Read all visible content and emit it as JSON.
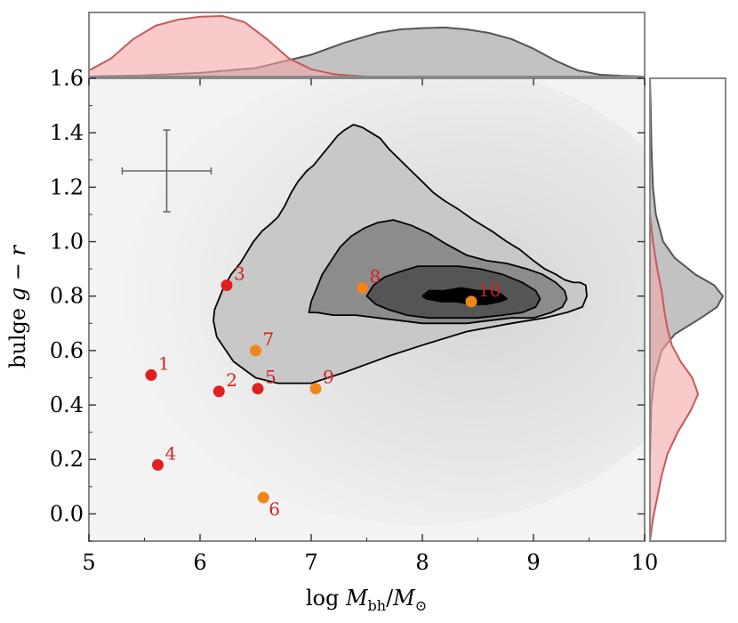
{
  "chart_data": {
    "type": "scatter",
    "xlabel": "log M_bh/M_sun",
    "xlabel_parts": {
      "prefix": "log ",
      "m1": "M",
      "sub1": "bh",
      "slash": "/",
      "m2": "M",
      "sub2": "⊙"
    },
    "ylabel": "bulge g − r",
    "ylabel_parts": {
      "prefix": "bulge ",
      "g": "g",
      "minus": " − ",
      "r": "r"
    },
    "xlim": [
      5,
      10
    ],
    "ylim": [
      -0.1,
      1.6
    ],
    "xticks": [
      5,
      6,
      7,
      8,
      9,
      10
    ],
    "xtick_labels": [
      "5",
      "6",
      "7",
      "8",
      "9",
      "10"
    ],
    "yticks": [
      0.0,
      0.2,
      0.4,
      0.6,
      0.8,
      1.0,
      1.2,
      1.4,
      1.6
    ],
    "ytick_labels": [
      "0.0",
      "0.2",
      "0.4",
      "0.6",
      "0.8",
      "1.0",
      "1.2",
      "1.4",
      "1.6"
    ],
    "error_bar": {
      "x": 5.7,
      "y": 1.26,
      "xerr": 0.4,
      "yerr": 0.15
    },
    "colors": {
      "red": "#e02020",
      "orange": "#f0861a",
      "label": "#d42020",
      "kde_red": "#f4a6a6",
      "kde_red_edge": "#c65a5a",
      "kde_gray": "#9a9a9a",
      "kde_gray_edge": "#555555",
      "contour_light": "#c8c8c8",
      "contour_mid": "#8c8c8c",
      "contour_dark": "#555555",
      "contour_core": "#000000"
    },
    "points": [
      {
        "label": "1",
        "x": 5.56,
        "y": 0.51,
        "group": "red"
      },
      {
        "label": "2",
        "x": 6.17,
        "y": 0.45,
        "group": "red"
      },
      {
        "label": "3",
        "x": 6.24,
        "y": 0.84,
        "group": "red"
      },
      {
        "label": "4",
        "x": 5.62,
        "y": 0.18,
        "group": "red"
      },
      {
        "label": "5",
        "x": 6.52,
        "y": 0.46,
        "group": "red"
      },
      {
        "label": "6",
        "x": 6.57,
        "y": 0.06,
        "group": "orange"
      },
      {
        "label": "7",
        "x": 6.5,
        "y": 0.6,
        "group": "orange"
      },
      {
        "label": "8",
        "x": 7.46,
        "y": 0.83,
        "group": "orange"
      },
      {
        "label": "9",
        "x": 7.04,
        "y": 0.46,
        "group": "orange"
      },
      {
        "label": "10",
        "x": 8.44,
        "y": 0.78,
        "group": "orange"
      }
    ],
    "contours": [
      {
        "level": "outer",
        "fill": "contour_light",
        "x": [
          6.12,
          6.13,
          6.2,
          6.28,
          6.36,
          6.42,
          6.48,
          6.56,
          6.62,
          6.7,
          6.76,
          6.82,
          6.88,
          6.96,
          7.02,
          7.1,
          7.18,
          7.24,
          7.3,
          7.38,
          7.46,
          7.54,
          7.62,
          7.7,
          7.8,
          7.9,
          8.0,
          8.1,
          8.2,
          8.32,
          8.46,
          8.62,
          8.76,
          8.88,
          9.0,
          9.1,
          9.2,
          9.28,
          9.36,
          9.42,
          9.47,
          9.48,
          9.44,
          9.3,
          9.1,
          8.8,
          8.4,
          8.0,
          7.7,
          7.5,
          7.3,
          7.15,
          7.0,
          6.85,
          6.7,
          6.5,
          6.3,
          6.15
        ],
        "y": [
          0.71,
          0.75,
          0.82,
          0.88,
          0.92,
          0.96,
          1.0,
          1.04,
          1.06,
          1.09,
          1.13,
          1.18,
          1.22,
          1.26,
          1.28,
          1.32,
          1.36,
          1.39,
          1.41,
          1.43,
          1.42,
          1.4,
          1.38,
          1.34,
          1.3,
          1.26,
          1.22,
          1.18,
          1.15,
          1.12,
          1.08,
          1.04,
          1.0,
          0.97,
          0.93,
          0.9,
          0.88,
          0.86,
          0.85,
          0.85,
          0.84,
          0.8,
          0.76,
          0.74,
          0.72,
          0.7,
          0.67,
          0.62,
          0.58,
          0.55,
          0.52,
          0.5,
          0.48,
          0.48,
          0.48,
          0.5,
          0.56,
          0.65
        ]
      },
      {
        "level": "middle",
        "fill": "contour_mid",
        "x": [
          6.98,
          7.0,
          7.05,
          7.1,
          7.18,
          7.26,
          7.36,
          7.48,
          7.6,
          7.74,
          7.9,
          8.06,
          8.22,
          8.4,
          8.58,
          8.76,
          8.94,
          9.08,
          9.2,
          9.28,
          9.3,
          9.26,
          9.16,
          9.0,
          8.8,
          8.6,
          8.4,
          8.2,
          8.0,
          7.8,
          7.6,
          7.4,
          7.2,
          7.05
        ],
        "y": [
          0.74,
          0.78,
          0.83,
          0.88,
          0.93,
          0.98,
          1.02,
          1.05,
          1.07,
          1.08,
          1.06,
          1.03,
          0.99,
          0.95,
          0.93,
          0.92,
          0.9,
          0.88,
          0.85,
          0.82,
          0.79,
          0.76,
          0.74,
          0.72,
          0.72,
          0.71,
          0.7,
          0.7,
          0.7,
          0.71,
          0.72,
          0.73,
          0.73,
          0.74
        ]
      },
      {
        "level": "inner",
        "fill": "contour_dark",
        "x": [
          7.5,
          7.56,
          7.66,
          7.8,
          7.96,
          8.14,
          8.32,
          8.52,
          8.72,
          8.9,
          9.02,
          9.06,
          9.02,
          8.9,
          8.72,
          8.5,
          8.28,
          8.06,
          7.86,
          7.7,
          7.58
        ],
        "y": [
          0.8,
          0.84,
          0.87,
          0.89,
          0.91,
          0.91,
          0.91,
          0.9,
          0.88,
          0.85,
          0.82,
          0.79,
          0.76,
          0.74,
          0.73,
          0.72,
          0.72,
          0.72,
          0.73,
          0.75,
          0.77
        ]
      },
      {
        "level": "core",
        "fill": "contour_core",
        "x": [
          8.0,
          8.06,
          8.2,
          8.35,
          8.5,
          8.62,
          8.7,
          8.76,
          8.7,
          8.58,
          8.44,
          8.3,
          8.16,
          8.04
        ],
        "y": [
          0.8,
          0.82,
          0.82,
          0.83,
          0.82,
          0.82,
          0.81,
          0.79,
          0.78,
          0.77,
          0.77,
          0.78,
          0.78,
          0.79
        ]
      }
    ],
    "top_kde": [
      {
        "name": "red",
        "fill": "kde_red",
        "edge": "kde_red_edge",
        "x": [
          5.0,
          5.2,
          5.4,
          5.6,
          5.8,
          6.0,
          6.2,
          6.4,
          6.6,
          6.8,
          7.0,
          7.2,
          7.4,
          7.5
        ],
        "d": [
          0.1,
          0.3,
          0.62,
          0.84,
          0.94,
          0.99,
          1.0,
          0.9,
          0.62,
          0.3,
          0.12,
          0.04,
          0.01,
          0.0
        ]
      },
      {
        "name": "gray",
        "fill": "kde_gray",
        "edge": "kde_gray_edge",
        "x": [
          5.0,
          5.5,
          6.0,
          6.5,
          7.0,
          7.3,
          7.6,
          7.8,
          8.0,
          8.2,
          8.4,
          8.6,
          8.8,
          9.0,
          9.2,
          9.4,
          9.6,
          9.8,
          10.0
        ],
        "d": [
          0.0,
          0.02,
          0.06,
          0.14,
          0.36,
          0.56,
          0.72,
          0.78,
          0.8,
          0.81,
          0.78,
          0.72,
          0.62,
          0.46,
          0.26,
          0.1,
          0.03,
          0.01,
          0.0
        ]
      }
    ],
    "right_kde": [
      {
        "name": "red",
        "fill": "kde_red",
        "edge": "kde_red_edge",
        "y": [
          -0.1,
          -0.02,
          0.06,
          0.14,
          0.22,
          0.3,
          0.38,
          0.44,
          0.5,
          0.56,
          0.62,
          0.68,
          0.74,
          0.82,
          0.9,
          1.0,
          1.1
        ],
        "d": [
          0.0,
          0.04,
          0.1,
          0.16,
          0.24,
          0.38,
          0.56,
          0.66,
          0.58,
          0.42,
          0.3,
          0.24,
          0.2,
          0.16,
          0.1,
          0.04,
          0.0
        ]
      },
      {
        "name": "gray",
        "fill": "kde_gray",
        "edge": "kde_gray_edge",
        "y": [
          0.2,
          0.4,
          0.5,
          0.6,
          0.66,
          0.72,
          0.76,
          0.8,
          0.84,
          0.88,
          0.94,
          1.0,
          1.1,
          1.2,
          1.35,
          1.5,
          1.6
        ],
        "d": [
          0.0,
          0.02,
          0.06,
          0.16,
          0.34,
          0.7,
          0.92,
          1.0,
          0.88,
          0.62,
          0.34,
          0.18,
          0.08,
          0.04,
          0.02,
          0.01,
          0.0
        ]
      }
    ]
  }
}
